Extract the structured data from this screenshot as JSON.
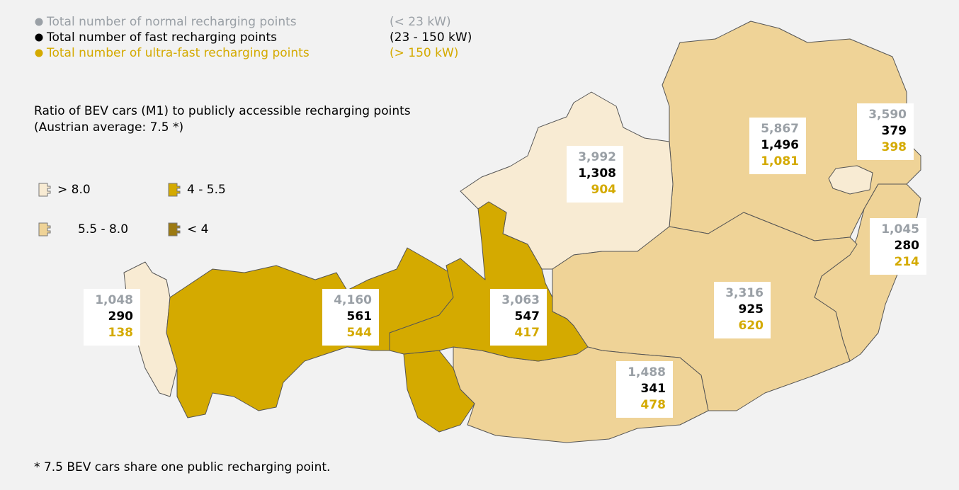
{
  "legend": {
    "items": [
      {
        "label": "Total number of normal recharging points",
        "range": "(< 23 kW)",
        "color": "#9aa0a6"
      },
      {
        "label": "Total number of fast recharging points",
        "range": "(23 - 150 kW)",
        "color": "#000000"
      },
      {
        "label": "Total number of ultra-fast recharging points",
        "range": "(> 150 kW)",
        "color": "#d4aa00"
      }
    ],
    "ratio_title": [
      "Ratio of BEV cars (M1) to publicly accessible recharging points",
      "(Austrian average: 7.5 *)"
    ],
    "classes": [
      {
        "label": "> 8.0",
        "color": "#f8ebd3"
      },
      {
        "label": "5.5 - 8.0",
        "color": "#efd397"
      },
      {
        "label": "4 - 5.5",
        "color": "#d4aa00"
      },
      {
        "label": "< 4",
        "color": "#9c7a12"
      }
    ]
  },
  "regions": [
    {
      "fill": "#f8ebd3",
      "normal": "1,048",
      "fast": "290",
      "ultra": "138"
    },
    {
      "fill": "#d4aa00",
      "normal": "4,160",
      "fast": "561",
      "ultra": "544"
    },
    {
      "fill": "#d4aa00",
      "normal": "3,063",
      "fast": "547",
      "ultra": "417"
    },
    {
      "fill": "#f8ebd3",
      "normal": "3,992",
      "fast": "1,308",
      "ultra": "904"
    },
    {
      "fill": "#efd397",
      "normal": "5,867",
      "fast": "1,496",
      "ultra": "1,081"
    },
    {
      "fill": "#f8ebd3",
      "normal": "3,590",
      "fast": "379",
      "ultra": "398"
    },
    {
      "fill": "#efd397",
      "normal": "1,045",
      "fast": "280",
      "ultra": "214"
    },
    {
      "fill": "#efd397",
      "normal": "3,316",
      "fast": "925",
      "ultra": "620"
    },
    {
      "fill": "#efd397",
      "normal": "1,488",
      "fast": "341",
      "ultra": "478"
    }
  ],
  "footnote": "* 7.5 BEV cars share one public recharging point."
}
